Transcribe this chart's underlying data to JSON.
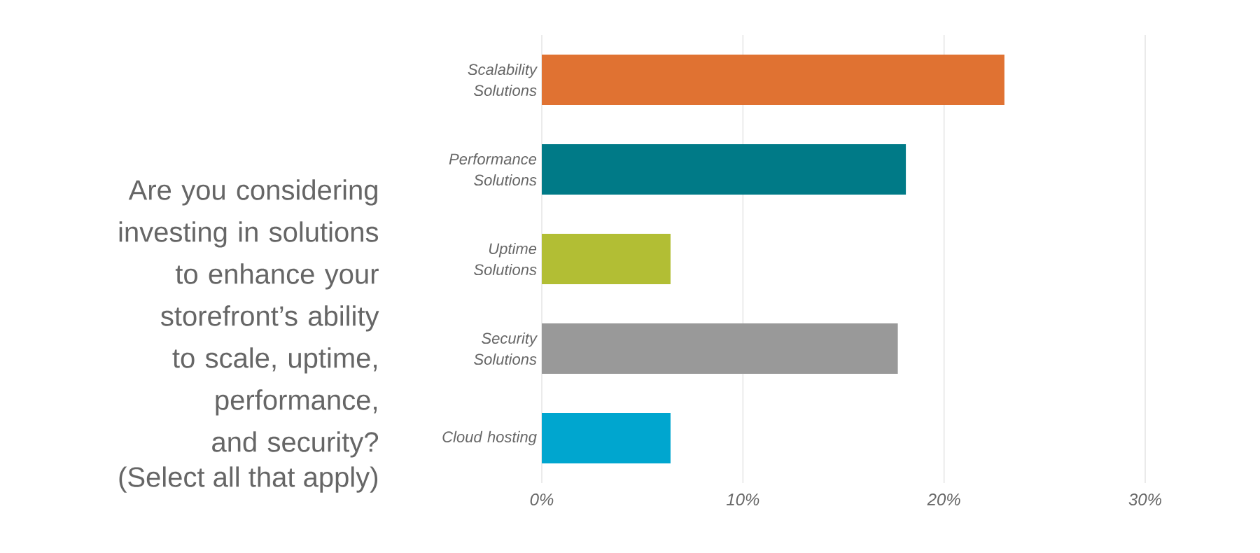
{
  "chart_data": {
    "type": "bar",
    "orientation": "horizontal",
    "title": "Are you considering investing in solutions to enhance your storefront’s ability to scale, uptime, performance, and security?",
    "subtitle": "(Select all that apply)",
    "categories": [
      "Scalability Solutions",
      "Performance Solutions",
      "Uptime Solutions",
      "Security Solutions",
      "Cloud hosting"
    ],
    "values": [
      23.0,
      18.1,
      6.4,
      17.7,
      6.4
    ],
    "colors": [
      "#e07232",
      "#007a87",
      "#b2be34",
      "#999999",
      "#00a6cf"
    ],
    "xlim": [
      0,
      30
    ],
    "xticks": [
      {
        "value": 0,
        "label": "0%"
      },
      {
        "value": 10,
        "label": "10%"
      },
      {
        "value": 20,
        "label": "20%"
      },
      {
        "value": 30,
        "label": "30%"
      }
    ],
    "grid": "x"
  }
}
